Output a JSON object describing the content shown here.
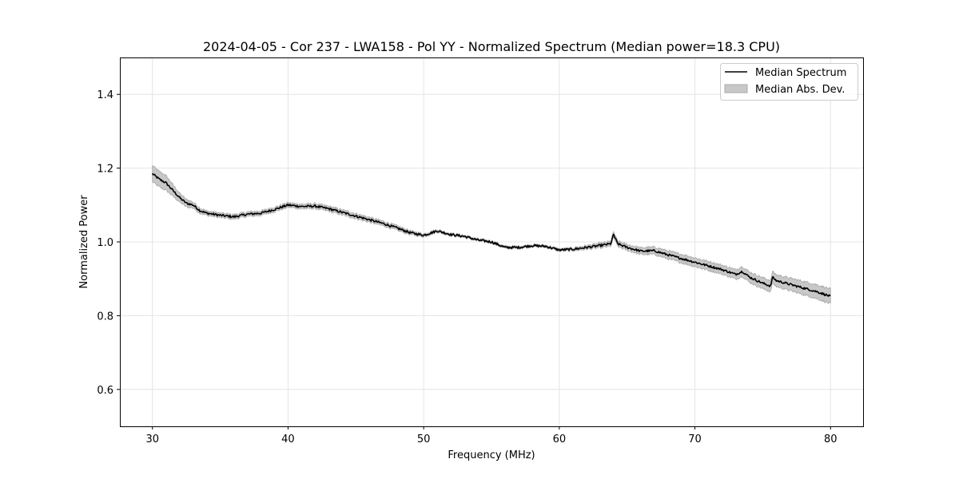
{
  "chart_data": {
    "type": "line",
    "title": "2024-04-05 - Cor 237 - LWA158 - Pol YY - Normalized Spectrum (Median power=18.3 CPU)",
    "xlabel": "Frequency (MHz)",
    "ylabel": "Normalized Power",
    "xlim": [
      27.6,
      82.4
    ],
    "ylim": [
      0.5,
      1.5
    ],
    "xticks": [
      30,
      40,
      50,
      60,
      70,
      80
    ],
    "xtick_labels": [
      "30",
      "40",
      "50",
      "60",
      "70",
      "80"
    ],
    "yticks": [
      0.6,
      0.8,
      1.0,
      1.2,
      1.4
    ],
    "ytick_labels": [
      "0.6",
      "0.8",
      "1.0",
      "1.2",
      "1.4"
    ],
    "grid": true,
    "legend_position": "top-right",
    "legend": [
      "Median Spectrum",
      "Median Abs. Dev."
    ],
    "series": [
      {
        "name": "Median Spectrum",
        "style": "line",
        "x": [
          30,
          30.5,
          31,
          31.5,
          32,
          32.5,
          33,
          33.5,
          34,
          35,
          36,
          37,
          38,
          39,
          40,
          41,
          42,
          43,
          44,
          45,
          46,
          47,
          48,
          49,
          50,
          51,
          52,
          53,
          54,
          55,
          56,
          57,
          58,
          59,
          60,
          61,
          62,
          63,
          63.8,
          64,
          64.3,
          65,
          66,
          67,
          68,
          69,
          70,
          71,
          72,
          73,
          73.5,
          74,
          75,
          75.6,
          75.7,
          76,
          77,
          78,
          79,
          80
        ],
        "values": [
          1.185,
          1.17,
          1.16,
          1.14,
          1.12,
          1.105,
          1.1,
          1.085,
          1.078,
          1.072,
          1.068,
          1.075,
          1.078,
          1.088,
          1.1,
          1.096,
          1.097,
          1.09,
          1.08,
          1.07,
          1.06,
          1.05,
          1.038,
          1.025,
          1.018,
          1.03,
          1.02,
          1.015,
          1.005,
          1.0,
          0.985,
          0.985,
          0.99,
          0.988,
          0.978,
          0.98,
          0.985,
          0.99,
          0.995,
          1.02,
          0.995,
          0.985,
          0.975,
          0.976,
          0.965,
          0.955,
          0.945,
          0.935,
          0.925,
          0.912,
          0.92,
          0.905,
          0.888,
          0.88,
          0.905,
          0.895,
          0.885,
          0.875,
          0.865,
          0.852
        ]
      },
      {
        "name": "Median Abs. Dev.",
        "style": "band",
        "x": [
          30,
          31,
          32,
          33,
          34,
          36,
          40,
          44,
          48,
          50,
          52,
          54,
          56,
          60,
          64,
          66,
          68,
          70,
          72,
          74,
          76,
          78,
          80
        ],
        "mad": [
          0.022,
          0.02,
          0.012,
          0.008,
          0.006,
          0.006,
          0.006,
          0.007,
          0.006,
          0.004,
          0.003,
          0.003,
          0.003,
          0.003,
          0.007,
          0.009,
          0.011,
          0.012,
          0.012,
          0.014,
          0.016,
          0.018,
          0.02
        ]
      }
    ]
  },
  "colors": {
    "line": "#000000",
    "band_fill": "#c8c8c8",
    "band_edge": "#a8a8a8",
    "grid": "#e4e4e4",
    "frame": "#000000",
    "legend_border": "#cccccc"
  }
}
